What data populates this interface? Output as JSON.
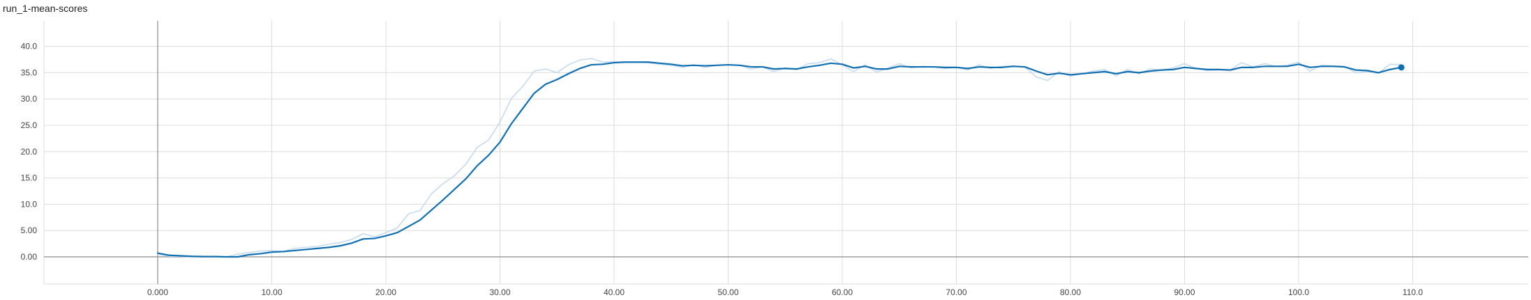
{
  "title": "run_1-mean-scores",
  "colors": {
    "smoothed": "#0f6fb1",
    "raw": "#c5daf0",
    "grid": "#dcdcdc",
    "zero_axis": "#8a8a8a",
    "tick_text": "#444444"
  },
  "chart_data": {
    "type": "line",
    "title": "run_1-mean-scores",
    "xlabel": "",
    "ylabel": "",
    "xlim": [
      -10,
      120
    ],
    "ylim": [
      -5,
      43
    ],
    "grid": true,
    "x_ticks": [
      0,
      10,
      20,
      30,
      40,
      50,
      60,
      70,
      80,
      90,
      100,
      110
    ],
    "x_tick_labels": [
      "0.000",
      "10.00",
      "20.00",
      "30.00",
      "40.00",
      "50.00",
      "60.00",
      "70.00",
      "80.00",
      "90.00",
      "100.0",
      "110.0"
    ],
    "y_ticks": [
      0,
      5,
      10,
      15,
      20,
      25,
      30,
      35,
      40
    ],
    "y_tick_labels": [
      "0.00",
      "5.00",
      "10.0",
      "15.0",
      "20.0",
      "25.0",
      "30.0",
      "35.0",
      "40.0"
    ],
    "series": [
      {
        "role": "raw",
        "x": [
          0,
          1,
          2,
          3,
          4,
          5,
          6,
          7,
          8,
          9,
          10,
          11,
          12,
          13,
          14,
          15,
          16,
          17,
          18,
          19,
          20,
          21,
          22,
          23,
          24,
          25,
          26,
          27,
          28,
          29,
          30,
          31,
          32,
          33,
          34,
          35,
          36,
          37,
          38,
          39,
          40,
          41,
          42,
          43,
          44,
          45,
          46,
          47,
          48,
          49,
          50,
          51,
          52,
          53,
          54,
          55,
          56,
          57,
          58,
          59,
          60,
          61,
          62,
          63,
          64,
          65,
          66,
          67,
          68,
          69,
          70,
          71,
          72,
          73,
          74,
          75,
          76,
          77,
          78,
          79,
          80,
          81,
          82,
          83,
          84,
          85,
          86,
          87,
          88,
          89,
          90,
          91,
          92,
          93,
          94,
          95,
          96,
          97,
          98,
          99,
          100,
          101,
          102,
          103,
          104,
          105,
          106,
          107,
          108,
          109
        ],
        "y": [
          0.5,
          0.1,
          0.1,
          0.0,
          0.0,
          0.1,
          0.0,
          0.5,
          0.8,
          1.1,
          1.2,
          1.0,
          1.6,
          1.8,
          2.0,
          2.4,
          2.7,
          3.3,
          4.4,
          3.8,
          4.6,
          5.5,
          8.2,
          8.8,
          12.0,
          13.9,
          15.4,
          17.6,
          20.8,
          22.2,
          25.6,
          30.1,
          32.4,
          35.3,
          35.7,
          35.0,
          36.5,
          37.4,
          37.7,
          37.0,
          37.1,
          37.0,
          37.0,
          36.9,
          36.6,
          36.4,
          36.0,
          36.5,
          36.0,
          36.4,
          36.5,
          36.4,
          35.7,
          36.1,
          35.2,
          35.9,
          35.6,
          36.7,
          36.9,
          37.6,
          36.5,
          35.2,
          36.5,
          35.1,
          35.9,
          36.7,
          35.9,
          36.2,
          36.1,
          35.8,
          36.0,
          35.5,
          36.5,
          35.8,
          36.2,
          36.3,
          36.1,
          34.2,
          33.5,
          35.2,
          34.3,
          34.8,
          35.3,
          35.6,
          34.4,
          35.6,
          34.8,
          35.7,
          35.5,
          35.9,
          36.7,
          35.8,
          35.4,
          35.5,
          35.5,
          36.9,
          36.1,
          36.7,
          36.2,
          36.4,
          37.0,
          35.3,
          36.4,
          36.3,
          36.2,
          35.0,
          35.2,
          34.9,
          36.6,
          36.5
        ]
      },
      {
        "role": "smoothed",
        "x": [
          0,
          1,
          2,
          3,
          4,
          5,
          6,
          7,
          8,
          9,
          10,
          11,
          12,
          13,
          14,
          15,
          16,
          17,
          18,
          19,
          20,
          21,
          22,
          23,
          24,
          25,
          26,
          27,
          28,
          29,
          30,
          31,
          32,
          33,
          34,
          35,
          36,
          37,
          38,
          39,
          40,
          41,
          42,
          43,
          44,
          45,
          46,
          47,
          48,
          49,
          50,
          51,
          52,
          53,
          54,
          55,
          56,
          57,
          58,
          59,
          60,
          61,
          62,
          63,
          64,
          65,
          66,
          67,
          68,
          69,
          70,
          71,
          72,
          73,
          74,
          75,
          76,
          77,
          78,
          79,
          80,
          81,
          82,
          83,
          84,
          85,
          86,
          87,
          88,
          89,
          90,
          91,
          92,
          93,
          94,
          95,
          96,
          97,
          98,
          99,
          100,
          101,
          102,
          103,
          104,
          105,
          106,
          107,
          108,
          109
        ],
        "y": [
          0.7,
          0.3,
          0.2,
          0.1,
          0.05,
          0.05,
          0.0,
          0.0,
          0.4,
          0.6,
          0.9,
          1.0,
          1.2,
          1.4,
          1.6,
          1.8,
          2.1,
          2.6,
          3.4,
          3.5,
          4.0,
          4.6,
          5.8,
          7.0,
          8.9,
          10.8,
          12.8,
          14.8,
          17.3,
          19.3,
          21.8,
          25.3,
          28.2,
          31.1,
          32.8,
          33.7,
          34.8,
          35.8,
          36.5,
          36.6,
          36.9,
          37.0,
          37.0,
          37.0,
          36.8,
          36.6,
          36.3,
          36.4,
          36.3,
          36.4,
          36.5,
          36.4,
          36.1,
          36.1,
          35.7,
          35.8,
          35.7,
          36.1,
          36.4,
          36.8,
          36.6,
          35.9,
          36.2,
          35.7,
          35.7,
          36.2,
          36.1,
          36.1,
          36.1,
          36.0,
          36.0,
          35.8,
          36.1,
          36.0,
          36.0,
          36.2,
          36.1,
          35.3,
          34.6,
          34.9,
          34.6,
          34.8,
          35.0,
          35.2,
          34.8,
          35.2,
          35.0,
          35.3,
          35.5,
          35.6,
          36.0,
          35.8,
          35.6,
          35.6,
          35.5,
          36.0,
          36.0,
          36.2,
          36.2,
          36.2,
          36.6,
          36.0,
          36.2,
          36.2,
          36.1,
          35.5,
          35.4,
          35.0,
          35.6,
          36.0
        ]
      }
    ]
  }
}
